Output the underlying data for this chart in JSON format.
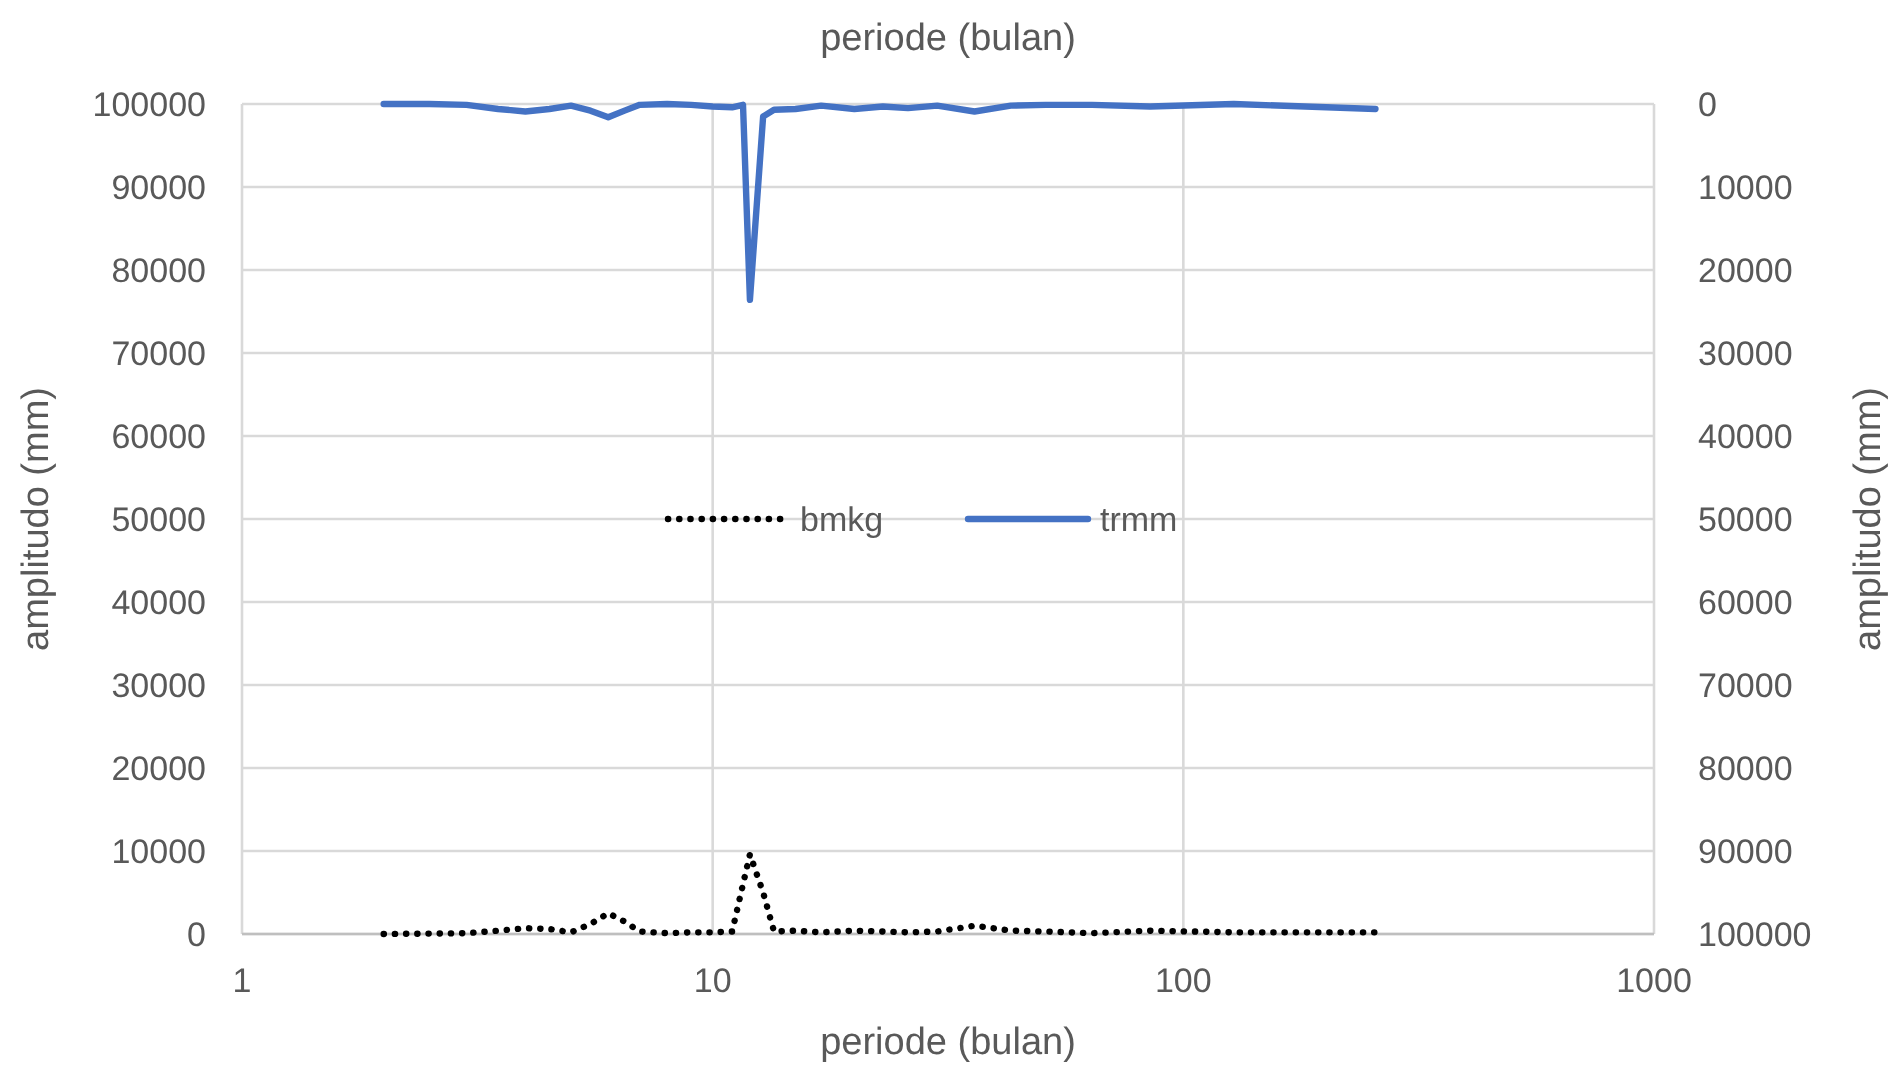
{
  "chart_data": {
    "type": "line",
    "title": "periode (bulan)",
    "xlabel": "periode (bulan)",
    "ylabel": "amplitudo (mm)",
    "y2label": "amplitudo (mm)",
    "log": "x",
    "grid": true,
    "legend": "center",
    "xlim": [
      1,
      1000
    ],
    "xticks": [
      1,
      10,
      100,
      1000
    ],
    "ylim": [
      0,
      100000
    ],
    "yticks": [
      0,
      10000,
      20000,
      30000,
      40000,
      50000,
      60000,
      70000,
      80000,
      90000,
      100000
    ],
    "y2lim": [
      100000,
      0
    ],
    "y2ticks": [
      0,
      10000,
      20000,
      30000,
      40000,
      50000,
      60000,
      70000,
      80000,
      90000,
      100000
    ],
    "x": [
      2,
      2.5,
      3,
      3.5,
      4,
      4.5,
      5,
      5.5,
      6,
      6.5,
      7,
      8,
      9,
      10,
      11,
      11.6,
      12,
      12.8,
      13.5,
      15,
      17,
      20,
      23,
      26,
      30,
      36,
      43,
      51,
      64,
      85,
      128,
      256
    ],
    "series": [
      {
        "name": "bmkg",
        "color": "#000000",
        "line_style": "dotted",
        "values": [
          0,
          50,
          100,
          400,
          700,
          600,
          200,
          1200,
          2500,
          1500,
          300,
          100,
          200,
          200,
          300,
          6000,
          9600,
          5000,
          300,
          400,
          200,
          400,
          300,
          200,
          300,
          1000,
          400,
          300,
          100,
          400,
          200,
          200
        ]
      },
      {
        "name": "trmm",
        "color": "#4472c4",
        "line_style": "solid",
        "axis": "y2",
        "values": [
          0,
          0,
          100,
          600,
          900,
          600,
          200,
          800,
          1600,
          800,
          100,
          0,
          100,
          300,
          400,
          100,
          23600,
          1500,
          700,
          600,
          200,
          600,
          300,
          500,
          200,
          900,
          200,
          100,
          100,
          300,
          0,
          600
        ]
      }
    ]
  }
}
